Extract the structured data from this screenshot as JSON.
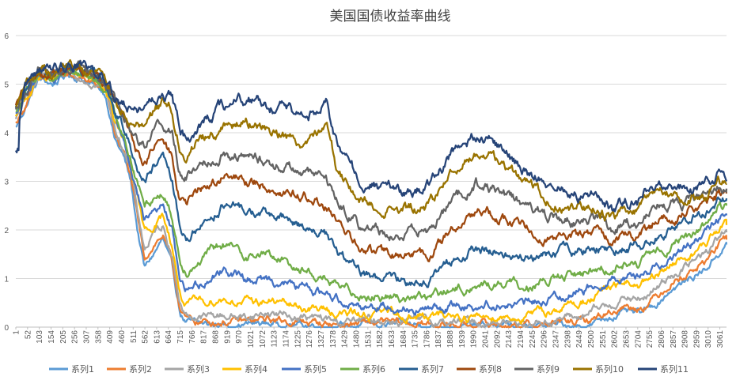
{
  "chart_data": {
    "type": "line",
    "title": "美国国债收益率曲线",
    "xlabel": "",
    "ylabel": "",
    "ylim": [
      0,
      6
    ],
    "y_ticks": [
      0,
      1,
      2,
      3,
      4,
      5,
      6
    ],
    "x_range": [
      1,
      3090
    ],
    "x_ticks": [
      1,
      52,
      103,
      154,
      205,
      256,
      307,
      358,
      409,
      460,
      511,
      562,
      613,
      664,
      715,
      766,
      817,
      868,
      919,
      970,
      1021,
      1072,
      1123,
      1174,
      1225,
      1276,
      1327,
      1378,
      1429,
      1480,
      1531,
      1582,
      1633,
      1684,
      1735,
      1786,
      1837,
      1888,
      1939,
      1990,
      2041,
      2092,
      2143,
      2194,
      2245,
      2296,
      2347,
      2398,
      2449,
      2500,
      2551,
      2602,
      2653,
      2704,
      2755,
      2806,
      2857,
      2908,
      2959,
      3010,
      3061
    ],
    "grid": true,
    "legend_position": "bottom",
    "series": [
      {
        "name": "系列1",
        "color": "#5B9BD5",
        "x": [
          1,
          40,
          100,
          160,
          230,
          300,
          360,
          390,
          410,
          430,
          470,
          500,
          530,
          560,
          600,
          640,
          680,
          715,
          740,
          800,
          900,
          1000,
          1100,
          1250,
          1350,
          1400,
          1500,
          1600,
          1700,
          1800,
          1900,
          2000,
          2100,
          2200,
          2300,
          2400,
          2450,
          2500,
          2550,
          2600,
          2650,
          2700,
          2750,
          2800,
          2850,
          2900,
          2950,
          3000,
          3050,
          3090
        ],
        "values": [
          4.1,
          4.5,
          5.1,
          5.0,
          5.2,
          5.1,
          4.9,
          4.8,
          4.4,
          3.9,
          3.5,
          3.0,
          2.0,
          1.2,
          1.5,
          1.8,
          1.2,
          0.3,
          0.1,
          0.05,
          0.05,
          0.06,
          0.08,
          0.05,
          0.04,
          0.03,
          0.04,
          0.05,
          0.04,
          0.03,
          0.02,
          0.02,
          0.03,
          0.02,
          0.03,
          0.05,
          0.04,
          0.05,
          0.15,
          0.25,
          0.3,
          0.25,
          0.35,
          0.55,
          0.8,
          0.9,
          1.05,
          1.2,
          1.5,
          1.7
        ]
      },
      {
        "name": "系列2",
        "color": "#ED7D31",
        "x": [
          1,
          40,
          100,
          160,
          230,
          300,
          360,
          390,
          410,
          430,
          470,
          500,
          530,
          560,
          600,
          640,
          680,
          715,
          740,
          800,
          900,
          1000,
          1100,
          1250,
          1350,
          1400,
          1500,
          1600,
          1700,
          1800,
          1900,
          2000,
          2100,
          2200,
          2300,
          2400,
          2450,
          2500,
          2550,
          2600,
          2650,
          2700,
          2750,
          2800,
          2850,
          2900,
          2950,
          3000,
          3050,
          3090
        ],
        "values": [
          4.2,
          4.55,
          5.1,
          5.05,
          5.2,
          5.1,
          4.95,
          4.85,
          4.5,
          4.0,
          3.6,
          3.1,
          2.2,
          1.4,
          1.7,
          1.9,
          1.3,
          0.4,
          0.15,
          0.1,
          0.12,
          0.1,
          0.15,
          0.1,
          0.08,
          0.06,
          0.07,
          0.08,
          0.07,
          0.05,
          0.06,
          0.05,
          0.06,
          0.05,
          0.06,
          0.1,
          0.1,
          0.15,
          0.25,
          0.35,
          0.45,
          0.4,
          0.5,
          0.7,
          0.95,
          1.05,
          1.2,
          1.35,
          1.65,
          1.8
        ]
      },
      {
        "name": "系列3",
        "color": "#A5A5A5",
        "x": [
          1,
          40,
          100,
          160,
          230,
          300,
          360,
          390,
          410,
          430,
          470,
          500,
          530,
          560,
          600,
          640,
          680,
          715,
          740,
          800,
          900,
          1000,
          1100,
          1250,
          1350,
          1400,
          1500,
          1600,
          1700,
          1800,
          1900,
          2000,
          2100,
          2200,
          2300,
          2400,
          2450,
          2500,
          2550,
          2600,
          2650,
          2700,
          2750,
          2800,
          2850,
          2900,
          2950,
          3000,
          3050,
          3090
        ],
        "values": [
          4.25,
          4.6,
          5.15,
          5.1,
          5.25,
          5.15,
          5.0,
          4.9,
          4.6,
          4.1,
          3.7,
          3.2,
          2.4,
          1.6,
          1.9,
          2.1,
          1.5,
          0.5,
          0.25,
          0.2,
          0.25,
          0.2,
          0.3,
          0.2,
          0.15,
          0.1,
          0.12,
          0.15,
          0.12,
          0.1,
          0.12,
          0.1,
          0.12,
          0.1,
          0.12,
          0.2,
          0.2,
          0.3,
          0.4,
          0.5,
          0.6,
          0.55,
          0.65,
          0.85,
          1.1,
          1.2,
          1.35,
          1.5,
          1.8,
          1.95
        ]
      },
      {
        "name": "系列4",
        "color": "#FFC000",
        "x": [
          1,
          40,
          100,
          160,
          230,
          300,
          360,
          390,
          410,
          430,
          470,
          500,
          530,
          560,
          600,
          640,
          680,
          715,
          740,
          800,
          900,
          1000,
          1100,
          1250,
          1350,
          1400,
          1500,
          1600,
          1700,
          1800,
          1900,
          2000,
          2100,
          2200,
          2300,
          2400,
          2450,
          2500,
          2550,
          2600,
          2650,
          2700,
          2750,
          2800,
          2850,
          2900,
          2950,
          3000,
          3050,
          3090
        ],
        "values": [
          4.3,
          4.65,
          5.15,
          5.1,
          5.25,
          5.15,
          5.0,
          4.9,
          4.65,
          4.2,
          3.8,
          3.3,
          2.6,
          1.9,
          2.1,
          2.3,
          1.7,
          0.7,
          0.45,
          0.5,
          0.6,
          0.5,
          0.55,
          0.4,
          0.35,
          0.3,
          0.25,
          0.3,
          0.25,
          0.2,
          0.25,
          0.2,
          0.25,
          0.2,
          0.3,
          0.45,
          0.5,
          0.6,
          0.7,
          0.8,
          0.9,
          0.85,
          0.9,
          1.05,
          1.3,
          1.4,
          1.55,
          1.7,
          2.0,
          2.1
        ]
      },
      {
        "name": "系列5",
        "color": "#4472C4",
        "x": [
          1,
          40,
          100,
          160,
          230,
          300,
          360,
          390,
          410,
          430,
          470,
          500,
          530,
          560,
          600,
          640,
          680,
          715,
          740,
          800,
          900,
          1000,
          1100,
          1250,
          1350,
          1400,
          1500,
          1600,
          1700,
          1800,
          1900,
          2000,
          2100,
          2200,
          2300,
          2400,
          2450,
          2500,
          2550,
          2600,
          2650,
          2700,
          2750,
          2800,
          2850,
          2900,
          2950,
          3000,
          3050,
          3090
        ],
        "values": [
          4.35,
          4.7,
          5.2,
          5.1,
          5.3,
          5.2,
          5.05,
          4.95,
          4.7,
          4.3,
          3.9,
          3.4,
          2.8,
          2.2,
          2.4,
          2.5,
          2.0,
          1.0,
          0.8,
          0.9,
          1.2,
          1.0,
          1.0,
          0.8,
          0.7,
          0.6,
          0.45,
          0.45,
          0.4,
          0.35,
          0.45,
          0.45,
          0.5,
          0.45,
          0.55,
          0.7,
          0.75,
          0.85,
          0.95,
          1.0,
          1.1,
          1.05,
          1.15,
          1.3,
          1.5,
          1.6,
          1.75,
          1.9,
          2.2,
          2.3
        ]
      },
      {
        "name": "系列6",
        "color": "#70AD47",
        "x": [
          1,
          40,
          100,
          160,
          230,
          300,
          360,
          390,
          410,
          430,
          470,
          500,
          530,
          560,
          600,
          640,
          680,
          715,
          740,
          800,
          900,
          1000,
          1100,
          1250,
          1350,
          1400,
          1500,
          1600,
          1700,
          1800,
          1900,
          2000,
          2100,
          2200,
          2300,
          2400,
          2450,
          2500,
          2550,
          2600,
          2650,
          2700,
          2750,
          2800,
          2850,
          2900,
          2950,
          3000,
          3050,
          3090
        ],
        "values": [
          4.4,
          4.75,
          5.2,
          5.15,
          5.3,
          5.2,
          5.05,
          4.95,
          4.75,
          4.4,
          4.0,
          3.5,
          3.0,
          2.5,
          2.7,
          2.8,
          2.3,
          1.4,
          1.2,
          1.4,
          1.7,
          1.5,
          1.5,
          1.2,
          1.0,
          0.8,
          0.7,
          0.65,
          0.6,
          0.6,
          0.75,
          0.85,
          0.9,
          0.85,
          0.9,
          1.05,
          1.1,
          1.15,
          1.2,
          1.25,
          1.35,
          1.3,
          1.4,
          1.55,
          1.7,
          1.8,
          1.95,
          2.1,
          2.4,
          2.5
        ]
      },
      {
        "name": "系列7",
        "color": "#255E91",
        "x": [
          1,
          40,
          100,
          160,
          230,
          300,
          360,
          390,
          410,
          430,
          470,
          500,
          530,
          560,
          600,
          640,
          680,
          715,
          740,
          800,
          900,
          1000,
          1100,
          1250,
          1350,
          1400,
          1500,
          1600,
          1700,
          1800,
          1900,
          2000,
          2100,
          2200,
          2300,
          2400,
          2450,
          2500,
          2550,
          2600,
          2650,
          2700,
          2750,
          2800,
          2850,
          2900,
          2950,
          3000,
          3050,
          3090
        ],
        "values": [
          4.45,
          4.8,
          5.25,
          5.15,
          5.35,
          5.25,
          5.1,
          5.0,
          4.8,
          4.5,
          4.1,
          3.7,
          3.3,
          3.0,
          3.3,
          3.4,
          3.0,
          2.0,
          1.8,
          2.1,
          2.5,
          2.4,
          2.3,
          2.1,
          1.9,
          1.5,
          1.1,
          1.0,
          0.95,
          1.0,
          1.35,
          1.6,
          1.55,
          1.4,
          1.45,
          1.55,
          1.55,
          1.6,
          1.65,
          1.6,
          1.7,
          1.65,
          1.75,
          1.95,
          2.05,
          2.1,
          2.25,
          2.35,
          2.6,
          2.65
        ]
      },
      {
        "name": "系列8",
        "color": "#9E480E",
        "x": [
          1,
          40,
          100,
          160,
          230,
          300,
          360,
          390,
          410,
          430,
          470,
          500,
          530,
          560,
          600,
          640,
          680,
          715,
          740,
          800,
          900,
          1000,
          1100,
          1250,
          1350,
          1400,
          1500,
          1600,
          1700,
          1800,
          1900,
          2000,
          2100,
          2200,
          2300,
          2400,
          2450,
          2500,
          2550,
          2600,
          2650,
          2700,
          2750,
          2800,
          2850,
          2900,
          2950,
          3000,
          3050,
          3090
        ],
        "values": [
          4.5,
          4.85,
          5.25,
          5.2,
          5.35,
          5.25,
          5.1,
          5.0,
          4.85,
          4.6,
          4.25,
          3.9,
          3.6,
          3.4,
          3.7,
          3.8,
          3.5,
          2.6,
          2.5,
          2.8,
          3.1,
          3.0,
          2.9,
          2.7,
          2.5,
          2.1,
          1.6,
          1.5,
          1.45,
          1.5,
          2.0,
          2.4,
          2.3,
          2.05,
          1.9,
          1.9,
          1.85,
          1.9,
          1.95,
          1.8,
          1.95,
          1.9,
          2.05,
          2.25,
          2.3,
          2.35,
          2.45,
          2.5,
          2.7,
          2.75
        ]
      },
      {
        "name": "系列9",
        "color": "#636363",
        "x": [
          1,
          40,
          100,
          160,
          230,
          300,
          360,
          390,
          410,
          430,
          470,
          500,
          530,
          560,
          600,
          640,
          680,
          715,
          740,
          800,
          900,
          1000,
          1100,
          1250,
          1350,
          1400,
          1500,
          1600,
          1700,
          1800,
          1900,
          2000,
          2100,
          2200,
          2300,
          2400,
          2450,
          2500,
          2550,
          2600,
          2650,
          2700,
          2750,
          2800,
          2850,
          2900,
          2950,
          3000,
          3050,
          3090
        ],
        "values": [
          4.55,
          4.9,
          5.3,
          5.2,
          5.4,
          5.3,
          5.15,
          5.05,
          4.9,
          4.7,
          4.4,
          4.1,
          3.9,
          3.8,
          4.1,
          4.2,
          4.0,
          3.2,
          3.1,
          3.4,
          3.6,
          3.5,
          3.4,
          3.2,
          3.0,
          2.6,
          2.1,
          1.95,
          1.9,
          2.0,
          2.6,
          2.95,
          2.8,
          2.5,
          2.3,
          2.2,
          2.15,
          2.2,
          2.2,
          2.0,
          2.2,
          2.15,
          2.35,
          2.5,
          2.55,
          2.55,
          2.6,
          2.65,
          2.85,
          2.85
        ]
      },
      {
        "name": "系列10",
        "color": "#997300",
        "x": [
          1,
          40,
          100,
          160,
          230,
          300,
          360,
          390,
          410,
          430,
          470,
          500,
          530,
          560,
          600,
          640,
          680,
          715,
          740,
          800,
          900,
          1000,
          1100,
          1250,
          1350,
          1400,
          1500,
          1600,
          1700,
          1800,
          1900,
          2000,
          2100,
          2200,
          2300,
          2400,
          2450,
          2500,
          2550,
          2600,
          2650,
          2700,
          2750,
          2800,
          2850,
          2900,
          2950,
          3000,
          3050,
          3090
        ],
        "values": [
          4.6,
          4.95,
          5.3,
          5.25,
          5.4,
          5.3,
          5.2,
          5.1,
          4.95,
          4.75,
          4.5,
          4.3,
          4.2,
          4.3,
          4.5,
          4.6,
          4.5,
          3.7,
          3.6,
          3.9,
          4.1,
          4.2,
          4.1,
          3.8,
          4.3,
          3.2,
          2.6,
          2.45,
          2.4,
          2.5,
          3.2,
          3.6,
          3.4,
          3.0,
          2.7,
          2.5,
          2.45,
          2.45,
          2.4,
          2.2,
          2.4,
          2.35,
          2.6,
          2.75,
          2.7,
          2.65,
          2.7,
          2.75,
          2.95,
          2.95
        ]
      },
      {
        "name": "系列11",
        "color": "#264478",
        "x": [
          1,
          15,
          16,
          40,
          100,
          160,
          230,
          300,
          360,
          390,
          410,
          430,
          470,
          500,
          530,
          560,
          600,
          640,
          680,
          715,
          740,
          800,
          900,
          1000,
          1100,
          1250,
          1350,
          1400,
          1500,
          1600,
          1700,
          1800,
          1900,
          2000,
          2100,
          2200,
          2300,
          2400,
          2450,
          2500,
          2550,
          2600,
          2650,
          2700,
          2750,
          2800,
          2850,
          2900,
          2950,
          3000,
          3050,
          3090
        ],
        "values": [
          3.7,
          3.7,
          4.3,
          5.0,
          5.35,
          5.25,
          5.45,
          5.35,
          5.25,
          5.15,
          5.0,
          4.8,
          4.6,
          4.5,
          4.5,
          4.6,
          4.7,
          4.8,
          4.7,
          4.0,
          3.9,
          4.2,
          4.5,
          4.7,
          4.6,
          4.3,
          4.6,
          3.7,
          3.0,
          2.85,
          2.8,
          2.9,
          3.6,
          3.9,
          3.7,
          3.3,
          3.0,
          2.8,
          2.7,
          2.7,
          2.6,
          2.4,
          2.6,
          2.55,
          2.9,
          3.05,
          2.95,
          2.85,
          2.85,
          2.9,
          3.1,
          3.0
        ]
      }
    ]
  }
}
